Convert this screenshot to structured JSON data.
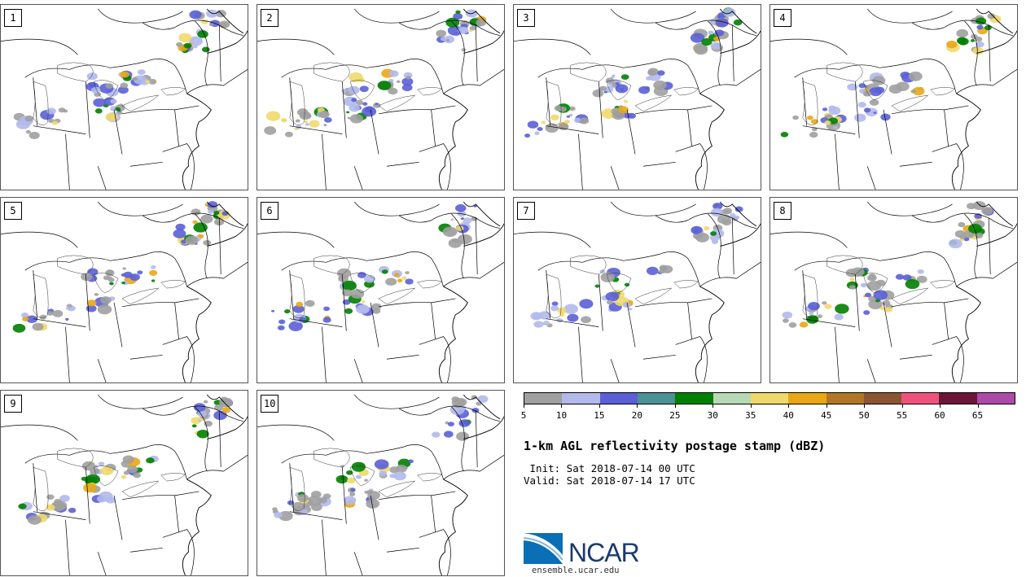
{
  "panels": [
    {
      "label": "1"
    },
    {
      "label": "2"
    },
    {
      "label": "3"
    },
    {
      "label": "4"
    },
    {
      "label": "5"
    },
    {
      "label": "6"
    },
    {
      "label": "7"
    },
    {
      "label": "8"
    },
    {
      "label": "9"
    },
    {
      "label": "10"
    }
  ],
  "colorbar": {
    "colors": [
      "#a0a0a0",
      "#b3b9eb",
      "#5a5fd6",
      "#4b9196",
      "#008000",
      "#b7d9b5",
      "#efd96a",
      "#e9a716",
      "#b07727",
      "#8b5432",
      "#ef537d",
      "#6b1637",
      "#ad4aa8"
    ],
    "ticks": [
      "5",
      "10",
      "15",
      "20",
      "25",
      "30",
      "35",
      "40",
      "45",
      "50",
      "55",
      "60",
      "65"
    ]
  },
  "title": "1-km AGL reflectivity postage stamp (dBZ)",
  "init_text": " Init: Sat 2018-07-14 00 UTC",
  "valid_text": "Valid: Sat 2018-07-14 17 UTC",
  "logo": {
    "text": "NCAR",
    "url": "ensemble.ucar.edu"
  }
}
